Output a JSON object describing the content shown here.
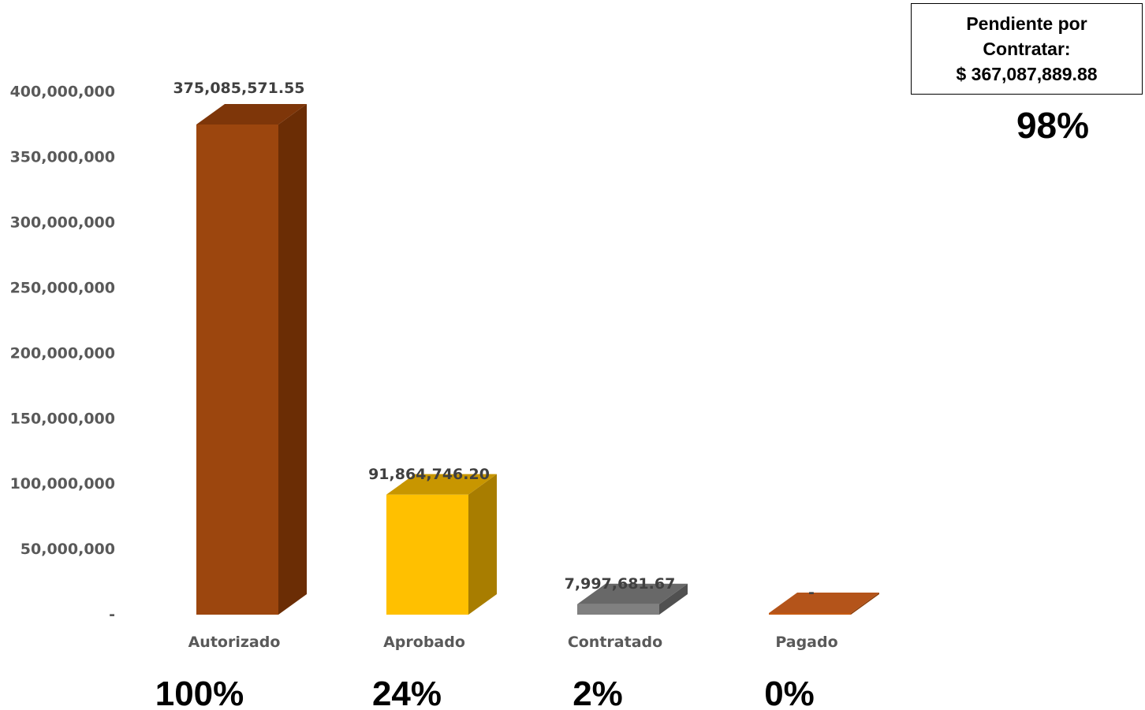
{
  "chart_data": {
    "type": "bar",
    "categories": [
      "Autorizado",
      "Aprobado",
      "Contratado",
      "Pagado"
    ],
    "values": [
      375085571.55,
      91864746.2,
      7997681.67,
      0
    ],
    "data_labels": [
      "375,085,571.55",
      "91,864,746.20",
      "7,997,681.67",
      "-"
    ],
    "percentages": [
      "100%",
      "24%",
      "2%",
      "0%"
    ],
    "ylim": [
      0,
      400000000
    ],
    "ytick_labels": [
      "-",
      "50,000,000",
      "100,000,000",
      "150,000,000",
      "200,000,000",
      "250,000,000",
      "300,000,000",
      "350,000,000",
      "400,000,000"
    ],
    "grid": false,
    "style": "3d-column",
    "colors": [
      {
        "front": "#9C460E",
        "side": "#6B2D05",
        "top": "#7E3609"
      },
      {
        "front": "#FFC000",
        "side": "#A87D00",
        "top": "#C89600"
      },
      {
        "front": "#808080",
        "side": "#505050",
        "top": "#686868"
      },
      {
        "front": "#C55A11",
        "side": "#8E3F0A",
        "top": "#B4541A"
      }
    ]
  },
  "pending": {
    "title": "Pendiente por Contratar:",
    "amount": "$ 367,087,889.88",
    "percentage": "98%"
  }
}
